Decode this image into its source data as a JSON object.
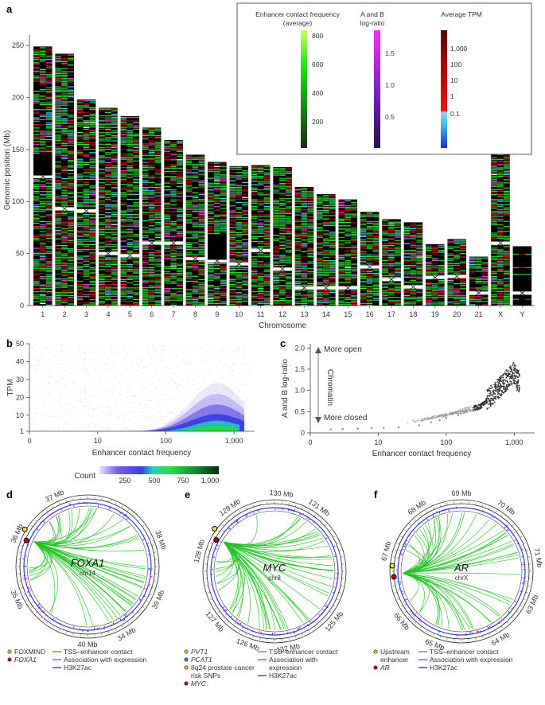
{
  "panel_a": {
    "label": "a",
    "legend": {
      "enhancer": {
        "title1": "Enhancer contact frequency",
        "title2": "(average)",
        "ticks": [
          "800",
          "600",
          "400",
          "200"
        ]
      },
      "ab": {
        "title1": "A and B",
        "title2": "log-ratio",
        "ticks": [
          "1.5",
          "1.0",
          "0.5"
        ]
      },
      "tpm": {
        "title": "Average TPM",
        "ticks": [
          "1,000",
          "100",
          "10",
          "1",
          "0.1"
        ]
      }
    },
    "chart_data": {
      "type": "bar",
      "title": "",
      "xlabel": "Chromosome",
      "ylabel": "Genomic position (Mb)",
      "ylim": [
        0,
        260
      ],
      "yticks": [
        "0",
        "50",
        "100",
        "150",
        "200",
        "250"
      ],
      "categories": [
        "1",
        "2",
        "3",
        "4",
        "5",
        "6",
        "7",
        "8",
        "9",
        "10",
        "11",
        "12",
        "13",
        "14",
        "15",
        "16",
        "17",
        "18",
        "19",
        "20",
        "21",
        "X",
        "Y"
      ],
      "values": [
        249,
        242,
        198,
        190,
        182,
        171,
        159,
        145,
        138,
        134,
        135,
        133,
        114,
        107,
        102,
        90,
        83,
        80,
        59,
        64,
        47,
        156,
        57
      ],
      "centromeres": [
        124,
        93,
        91,
        50,
        48,
        60,
        60,
        45,
        43,
        40,
        53,
        35,
        17,
        17,
        17,
        37,
        25,
        18,
        27,
        28,
        12,
        60,
        12
      ]
    }
  },
  "panel_b": {
    "label": "b",
    "chart_data": {
      "type": "heatmap",
      "title": "",
      "xlabel": "Enhancer contact frequency",
      "ylabel": "TPM",
      "xscale": "log",
      "xlim": [
        1,
        2000
      ],
      "ylim": [
        1,
        50
      ],
      "xticks": [
        "0",
        "10",
        "100",
        "1,000"
      ],
      "yticks": [
        "1",
        "10",
        "20",
        "30",
        "40",
        "50"
      ],
      "colorbar": {
        "label": "Count",
        "ticks": [
          "250",
          "500",
          "750",
          "1,000"
        ]
      }
    }
  },
  "panel_c": {
    "label": "c",
    "annotation_top": "More open",
    "annotation_mid": "Chromatin",
    "annotation_bottom": "More closed",
    "chart_data": {
      "type": "scatter",
      "title": "",
      "xlabel": "Enhancer contact frequency",
      "ylabel": "A and B log-ratio",
      "xscale": "log",
      "xlim": [
        1,
        2000
      ],
      "ylim": [
        0,
        2.1
      ],
      "xticks": [
        "0",
        "10",
        "100",
        "1,000"
      ],
      "yticks": [
        "0",
        "0.5",
        "1.0",
        "1.5",
        "2.0"
      ],
      "x": [
        2,
        3,
        5,
        8,
        12,
        20,
        40,
        60,
        80,
        100,
        150,
        200,
        250,
        300,
        400,
        500,
        600,
        700,
        800,
        900,
        1000,
        1100
      ],
      "y": [
        0.08,
        0.09,
        0.1,
        0.11,
        0.12,
        0.13,
        0.18,
        0.25,
        0.3,
        0.35,
        0.42,
        0.5,
        0.52,
        0.58,
        0.7,
        0.85,
        1.0,
        1.1,
        1.2,
        1.3,
        1.5,
        1.0
      ]
    }
  },
  "panel_d": {
    "label": "d",
    "gene": "FOXA1",
    "chrom": "chr14",
    "scale": [
      "39 Mb",
      "38 Mb",
      "37 Mb",
      "36 Mb",
      "35 Mb",
      "34 Mb",
      "40 Mb"
    ],
    "legend_left": [
      "FOXMIND",
      "FOXA1"
    ],
    "legend_right": [
      "TSS–enhancer contact",
      "Association with expression",
      "H3K27ac"
    ]
  },
  "panel_e": {
    "label": "e",
    "gene": "MYC",
    "chrom": "chr8",
    "scale": [
      "130 Mb",
      "131 Mb",
      "129 Mb",
      "128 Mb",
      "127 Mb",
      "126 Mb",
      "125 Mb",
      "132 Mb"
    ],
    "legend_left": [
      "PVT1",
      "PCAT1",
      "8q24 prostate cancer",
      "risk SNPs",
      "MYC"
    ],
    "legend_right": [
      "TSS–enhancer contact",
      "Association with",
      "expression",
      "H3K27ac"
    ]
  },
  "panel_f": {
    "label": "f",
    "gene": "AR",
    "chrom": "chrX",
    "scale": [
      "69 Mb",
      "70 Mb",
      "68 Mb",
      "67 Mb",
      "66 Mb",
      "65 Mb",
      "64 Mb",
      "63 Mb",
      "71 Mb"
    ],
    "legend_left": [
      "Upstream",
      "enhancer",
      "AR"
    ],
    "legend_right": [
      "TSS–enhancer contact",
      "Association with expression",
      "H3K27ac"
    ]
  },
  "colors": {
    "green": "#22c322",
    "magenta": "#e62ee6",
    "blue": "#2b3fd9",
    "purple": "#6a1cc9",
    "red": "#d4001a",
    "black": "#000000"
  }
}
